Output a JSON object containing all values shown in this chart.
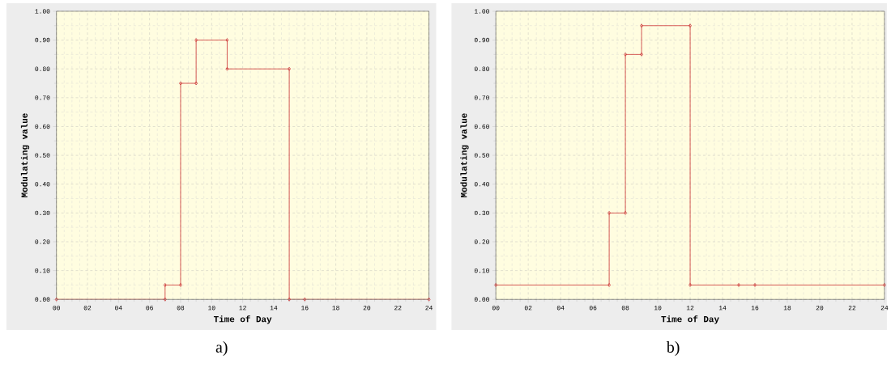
{
  "chart_data": [
    {
      "type": "line",
      "xlabel": "Time of Day",
      "ylabel": "Modulating value",
      "annotations": [
        "a)"
      ],
      "marker": "diamond",
      "line_style": "solid",
      "grid": true,
      "series": [
        {
          "color": "#cc3333",
          "x": [
            0,
            7,
            7,
            8,
            8,
            9,
            9,
            11,
            11,
            15,
            15,
            16,
            24
          ],
          "values": [
            0,
            0,
            0.05,
            0.05,
            0.75,
            0.75,
            0.9,
            0.9,
            0.8,
            0.8,
            0,
            0,
            0
          ]
        }
      ],
      "xlim": [
        0,
        24
      ],
      "ylim": [
        0,
        1
      ],
      "xticks": [
        {
          "value": 0,
          "label": "00"
        },
        {
          "value": 2,
          "label": "02"
        },
        {
          "value": 4,
          "label": "04"
        },
        {
          "value": 6,
          "label": "06"
        },
        {
          "value": 8,
          "label": "08"
        },
        {
          "value": 10,
          "label": "10"
        },
        {
          "value": 12,
          "label": "12"
        },
        {
          "value": 14,
          "label": "14"
        },
        {
          "value": 16,
          "label": "16"
        },
        {
          "value": 18,
          "label": "18"
        },
        {
          "value": 20,
          "label": "20"
        },
        {
          "value": 22,
          "label": "22"
        },
        {
          "value": 24,
          "label": "24"
        }
      ],
      "yticks": [
        {
          "value": 0,
          "label": "0.00"
        },
        {
          "value": 0.1,
          "label": "0.10"
        },
        {
          "value": 0.2,
          "label": "0.20"
        },
        {
          "value": 0.3,
          "label": "0.30"
        },
        {
          "value": 0.4,
          "label": "0.40"
        },
        {
          "value": 0.5,
          "label": "0.50"
        },
        {
          "value": 0.6,
          "label": "0.60"
        },
        {
          "value": 0.7,
          "label": "0.70"
        },
        {
          "value": 0.8,
          "label": "0.80"
        },
        {
          "value": 0.9,
          "label": "0.90"
        },
        {
          "value": 1,
          "label": "1.00"
        }
      ]
    },
    {
      "type": "line",
      "xlabel": "Time of Day",
      "ylabel": "Modulating value",
      "annotations": [
        "b)"
      ],
      "marker": "diamond",
      "line_style": "solid",
      "grid": true,
      "series": [
        {
          "color": "#cc3333",
          "x": [
            0,
            7,
            7,
            8,
            8,
            9,
            9,
            12,
            12,
            15,
            16,
            24
          ],
          "values": [
            0.05,
            0.05,
            0.3,
            0.3,
            0.85,
            0.85,
            0.95,
            0.95,
            0.05,
            0.05,
            0.05,
            0.05
          ]
        }
      ],
      "xlim": [
        0,
        24
      ],
      "ylim": [
        0,
        1
      ],
      "xticks": [
        {
          "value": 0,
          "label": "00"
        },
        {
          "value": 2,
          "label": "02"
        },
        {
          "value": 4,
          "label": "04"
        },
        {
          "value": 6,
          "label": "06"
        },
        {
          "value": 8,
          "label": "08"
        },
        {
          "value": 10,
          "label": "10"
        },
        {
          "value": 12,
          "label": "12"
        },
        {
          "value": 14,
          "label": "14"
        },
        {
          "value": 16,
          "label": "16"
        },
        {
          "value": 18,
          "label": "18"
        },
        {
          "value": 20,
          "label": "20"
        },
        {
          "value": 22,
          "label": "22"
        },
        {
          "value": 24,
          "label": "24"
        }
      ],
      "yticks": [
        {
          "value": 0,
          "label": "0.00"
        },
        {
          "value": 0.1,
          "label": "0.10"
        },
        {
          "value": 0.2,
          "label": "0.20"
        },
        {
          "value": 0.3,
          "label": "0.30"
        },
        {
          "value": 0.4,
          "label": "0.40"
        },
        {
          "value": 0.5,
          "label": "0.50"
        },
        {
          "value": 0.6,
          "label": "0.60"
        },
        {
          "value": 0.7,
          "label": "0.70"
        },
        {
          "value": 0.8,
          "label": "0.80"
        },
        {
          "value": 0.9,
          "label": "0.90"
        },
        {
          "value": 1,
          "label": "1.00"
        }
      ]
    }
  ]
}
